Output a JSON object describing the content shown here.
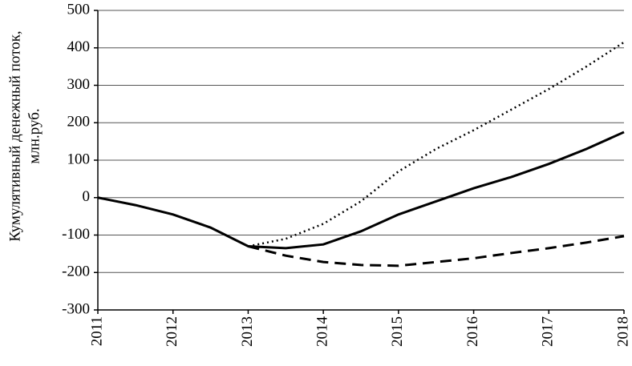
{
  "chart_data": {
    "type": "line",
    "ylabel": [
      "Кумулятивный денежный поток,",
      "млн.руб."
    ],
    "x": [
      2011,
      2011.5,
      2012,
      2012.5,
      2013,
      2013.5,
      2014,
      2014.5,
      2015,
      2015.5,
      2016,
      2016.5,
      2017,
      2017.5,
      2018
    ],
    "series": [
      {
        "color": "#000000",
        "style": "solid",
        "values": [
          0,
          -20,
          -45,
          -80,
          -130,
          -135,
          -125,
          -90,
          -45,
          -10,
          25,
          55,
          90,
          130,
          175
        ]
      },
      {
        "color": "#000000",
        "style": "dotted",
        "values": [
          null,
          null,
          null,
          null,
          -130,
          -110,
          -70,
          -10,
          70,
          130,
          180,
          235,
          290,
          350,
          415
        ]
      },
      {
        "color": "#000000",
        "style": "dashed",
        "values": [
          null,
          null,
          null,
          null,
          -130,
          -155,
          -172,
          -180,
          -182,
          -172,
          -162,
          -148,
          -135,
          -120,
          -103
        ]
      }
    ],
    "xlim": [
      2011,
      2018
    ],
    "xticks": [
      2011,
      2012,
      2013,
      2014,
      2015,
      2016,
      2017,
      2018
    ],
    "ylim": [
      -300,
      500
    ],
    "yticks": [
      -300,
      -200,
      -100,
      0,
      100,
      200,
      300,
      400,
      500
    ],
    "grid": true
  }
}
